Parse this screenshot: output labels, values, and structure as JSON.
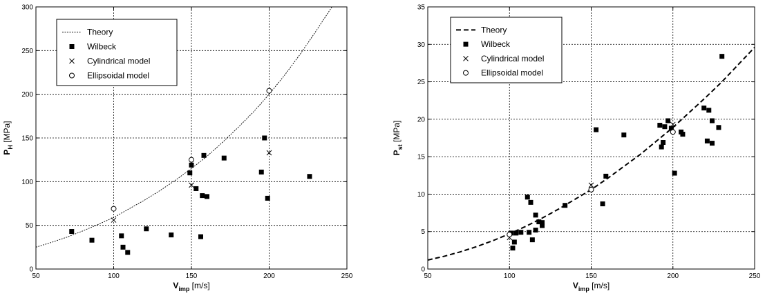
{
  "chart_data": [
    {
      "type": "scatter",
      "xlabel": "V",
      "xlabel_sub": "imp",
      "xlabel_unit": " [m/s]",
      "ylabel": "P",
      "ylabel_sub": "H",
      "ylabel_unit": " [MPa]",
      "xlim": [
        50,
        250
      ],
      "ylim": [
        0,
        300
      ],
      "xticks": [
        50,
        100,
        150,
        200,
        250
      ],
      "yticks": [
        0,
        50,
        100,
        150,
        200,
        250,
        300
      ],
      "grid": true,
      "legend_position": "top-left",
      "series": [
        {
          "name": "Theory",
          "kind": "line",
          "style": "dotted-thin",
          "x": [
            50,
            60,
            70,
            80,
            90,
            100,
            110,
            120,
            130,
            140,
            150,
            160,
            170,
            180,
            190,
            200,
            210,
            220,
            230,
            240,
            250
          ],
          "y": [
            25,
            30.5,
            36.5,
            43.5,
            51,
            59,
            69,
            79,
            90,
            102,
            115,
            129,
            145,
            162,
            180,
            200,
            222,
            246,
            272,
            299,
            328
          ]
        },
        {
          "name": "Wilbeck",
          "kind": "marker",
          "marker": "square",
          "x": [
            73,
            86,
            105,
            106,
            109,
            121,
            137,
            149,
            150,
            153,
            156,
            157,
            158,
            160,
            171,
            195,
            197,
            199,
            226
          ],
          "y": [
            43,
            33,
            38,
            25,
            19,
            46,
            39,
            110,
            119,
            92,
            37,
            84,
            130,
            83,
            127,
            111,
            150,
            81,
            106
          ]
        },
        {
          "name": "Cylindrical model",
          "kind": "marker",
          "marker": "x",
          "x": [
            100,
            150,
            200
          ],
          "y": [
            56,
            96,
            133
          ]
        },
        {
          "name": "Ellipsoidal model",
          "kind": "marker",
          "marker": "circle",
          "x": [
            100,
            150,
            200
          ],
          "y": [
            69,
            125,
            204
          ]
        }
      ]
    },
    {
      "type": "scatter",
      "xlabel": "V",
      "xlabel_sub": "imp",
      "xlabel_unit": " [m/s]",
      "ylabel": "P",
      "ylabel_sub": "st",
      "ylabel_unit": " [MPa]",
      "xlim": [
        50,
        250
      ],
      "ylim": [
        0,
        35
      ],
      "xticks": [
        50,
        100,
        150,
        200,
        250
      ],
      "yticks": [
        0,
        5,
        10,
        15,
        20,
        25,
        30,
        35
      ],
      "grid": true,
      "legend_position": "top-left",
      "series": [
        {
          "name": "Theory",
          "kind": "line",
          "style": "dashed-thick",
          "x": [
            50,
            60,
            70,
            80,
            90,
            100,
            110,
            120,
            130,
            140,
            150,
            160,
            170,
            180,
            190,
            200,
            210,
            220,
            230,
            240,
            250
          ],
          "y": [
            1.2,
            1.7,
            2.3,
            3.0,
            3.8,
            4.7,
            5.7,
            6.8,
            8.0,
            9.3,
            10.6,
            12.1,
            13.7,
            15.3,
            17.1,
            18.9,
            20.9,
            22.9,
            25.0,
            27.3,
            29.6
          ]
        },
        {
          "name": "Wilbeck",
          "kind": "marker",
          "marker": "square",
          "x": [
            101,
            102,
            103,
            104,
            107,
            111,
            112,
            113,
            114,
            116,
            116,
            118,
            120,
            120,
            134,
            153,
            157,
            159,
            170,
            192,
            193,
            194,
            195,
            197,
            199,
            201,
            205,
            206,
            219,
            221,
            222,
            224,
            224,
            228,
            230
          ],
          "y": [
            4.8,
            2.8,
            3.6,
            4.8,
            4.9,
            9.6,
            4.9,
            8.9,
            3.9,
            7.2,
            5.2,
            6.3,
            5.8,
            6.2,
            8.5,
            18.6,
            8.7,
            12.4,
            17.9,
            19.2,
            16.3,
            16.9,
            19.0,
            19.8,
            18.8,
            12.8,
            18.3,
            18.0,
            21.5,
            17.1,
            21.2,
            19.8,
            16.8,
            18.9,
            28.4
          ]
        },
        {
          "name": "Cylindrical model",
          "kind": "marker",
          "marker": "x",
          "x": [
            100,
            150,
            200
          ],
          "y": [
            4.2,
            11.2,
            19.3
          ]
        },
        {
          "name": "Ellipsoidal model",
          "kind": "marker",
          "marker": "circle",
          "x": [
            100,
            150,
            200
          ],
          "y": [
            4.6,
            10.6,
            18.3
          ]
        }
      ]
    }
  ]
}
